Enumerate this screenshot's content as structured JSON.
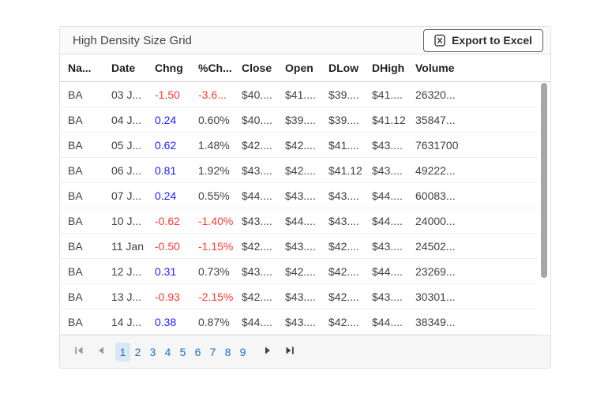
{
  "card": {
    "title": "High Density Size Grid",
    "toolbar": {
      "export_button_label": "Export to Excel",
      "export_icon": "excel-file-icon"
    }
  },
  "grid": {
    "columns": [
      {
        "key": "name",
        "label": "Na..."
      },
      {
        "key": "date",
        "label": "Date"
      },
      {
        "key": "chng",
        "label": "Chng"
      },
      {
        "key": "pct",
        "label": "%Ch..."
      },
      {
        "key": "close",
        "label": "Close"
      },
      {
        "key": "open",
        "label": "Open"
      },
      {
        "key": "dlow",
        "label": "DLow"
      },
      {
        "key": "dhigh",
        "label": "DHigh"
      },
      {
        "key": "volume",
        "label": "Volume"
      }
    ],
    "rows": [
      {
        "name": "BA",
        "date": "03 J...",
        "chng": "-1.50",
        "pct": "-3.6...",
        "close": "$40....",
        "open": "$41....",
        "dlow": "$39....",
        "dhigh": "$41....",
        "volume": "26320..."
      },
      {
        "name": "BA",
        "date": "04 J...",
        "chng": "0.24",
        "pct": "0.60%",
        "close": "$40....",
        "open": "$39....",
        "dlow": "$39....",
        "dhigh": "$41.12",
        "volume": "35847..."
      },
      {
        "name": "BA",
        "date": "05 J...",
        "chng": "0.62",
        "pct": "1.48%",
        "close": "$42....",
        "open": "$42....",
        "dlow": "$41....",
        "dhigh": "$43....",
        "volume": "7631700"
      },
      {
        "name": "BA",
        "date": "06 J...",
        "chng": "0.81",
        "pct": "1.92%",
        "close": "$43....",
        "open": "$42....",
        "dlow": "$41.12",
        "dhigh": "$43....",
        "volume": "49222..."
      },
      {
        "name": "BA",
        "date": "07 J...",
        "chng": "0.24",
        "pct": "0.55%",
        "close": "$44....",
        "open": "$43....",
        "dlow": "$43....",
        "dhigh": "$44....",
        "volume": "60083..."
      },
      {
        "name": "BA",
        "date": "10 J...",
        "chng": "-0.62",
        "pct": "-1.40%",
        "close": "$43....",
        "open": "$44....",
        "dlow": "$43....",
        "dhigh": "$44....",
        "volume": "24000..."
      },
      {
        "name": "BA",
        "date": "11 Jan",
        "chng": "-0.50",
        "pct": "-1.15%",
        "close": "$42....",
        "open": "$43....",
        "dlow": "$42....",
        "dhigh": "$43....",
        "volume": "24502..."
      },
      {
        "name": "BA",
        "date": "12 J...",
        "chng": "0.31",
        "pct": "0.73%",
        "close": "$43....",
        "open": "$42....",
        "dlow": "$42....",
        "dhigh": "$44....",
        "volume": "23269..."
      },
      {
        "name": "BA",
        "date": "13 J...",
        "chng": "-0.93",
        "pct": "-2.15%",
        "close": "$42....",
        "open": "$43....",
        "dlow": "$42....",
        "dhigh": "$43....",
        "volume": "30301..."
      },
      {
        "name": "BA",
        "date": "14 J...",
        "chng": "0.38",
        "pct": "0.87%",
        "close": "$44....",
        "open": "$43....",
        "dlow": "$42....",
        "dhigh": "$44....",
        "volume": "38349..."
      }
    ]
  },
  "pager": {
    "pages": [
      "1",
      "2",
      "3",
      "4",
      "5",
      "6",
      "7",
      "8",
      "9"
    ],
    "selected_page": "1",
    "controls": {
      "first": "first-page-icon",
      "prev": "previous-page-icon",
      "next": "next-page-icon",
      "last": "last-page-icon"
    }
  },
  "colors": {
    "positive_change": "#2020ff",
    "negative_change": "#ff3b30",
    "pager_link": "#1b70c4",
    "pager_selected_bg": "#d9e8f9",
    "disabled_icon": "#9a9a9a",
    "enabled_icon": "#424242"
  }
}
